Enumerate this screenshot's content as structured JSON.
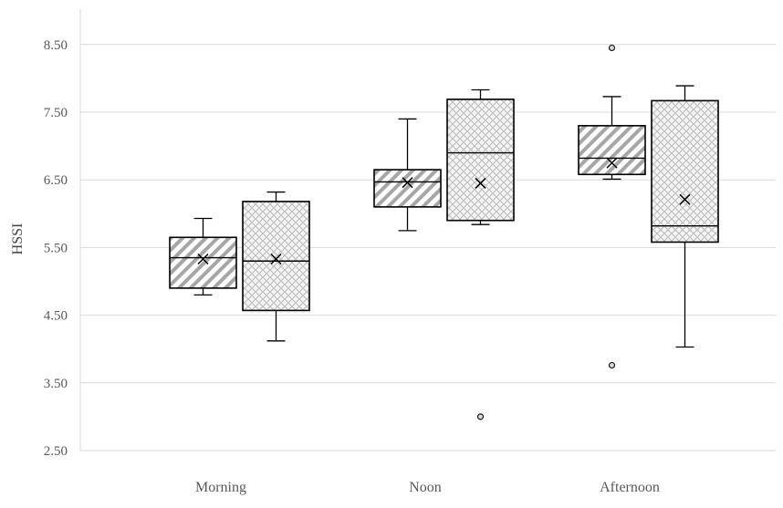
{
  "chart_data": {
    "type": "box",
    "title": "",
    "xlabel": "",
    "ylabel": "HSSI",
    "ylim": [
      2.5,
      9.0
    ],
    "yticks": [
      "2.50",
      "3.50",
      "4.50",
      "5.50",
      "6.50",
      "7.50",
      "8.50"
    ],
    "grid": "horizontal",
    "legend": "none",
    "categories": [
      "Morning",
      "Noon",
      "Afternoon"
    ],
    "series": [
      {
        "pattern": "diagonal-hatch",
        "boxes": [
          {
            "category": "Morning",
            "min": 4.8,
            "q1": 4.9,
            "median": 5.35,
            "q3": 5.65,
            "max": 5.93,
            "mean": 5.33,
            "outliers": []
          },
          {
            "category": "Noon",
            "min": 5.75,
            "q1": 6.1,
            "median": 6.47,
            "q3": 6.65,
            "max": 7.4,
            "mean": 6.46,
            "outliers": []
          },
          {
            "category": "Afternoon",
            "min": 6.51,
            "q1": 6.58,
            "median": 6.82,
            "q3": 7.3,
            "max": 7.73,
            "mean": 6.75,
            "outliers": [
              8.45,
              3.76
            ]
          }
        ]
      },
      {
        "pattern": "crosshatch-dots",
        "boxes": [
          {
            "category": "Morning",
            "min": 4.12,
            "q1": 4.57,
            "median": 5.3,
            "q3": 6.18,
            "max": 6.32,
            "mean": 5.33,
            "outliers": []
          },
          {
            "category": "Noon",
            "min": 5.84,
            "q1": 5.9,
            "median": 6.9,
            "q3": 7.69,
            "max": 7.83,
            "mean": 6.45,
            "outliers": [
              3.0
            ]
          },
          {
            "category": "Afternoon",
            "min": 4.03,
            "q1": 5.58,
            "median": 5.82,
            "q3": 7.67,
            "max": 7.89,
            "mean": 6.21,
            "outliers": []
          }
        ]
      }
    ]
  }
}
